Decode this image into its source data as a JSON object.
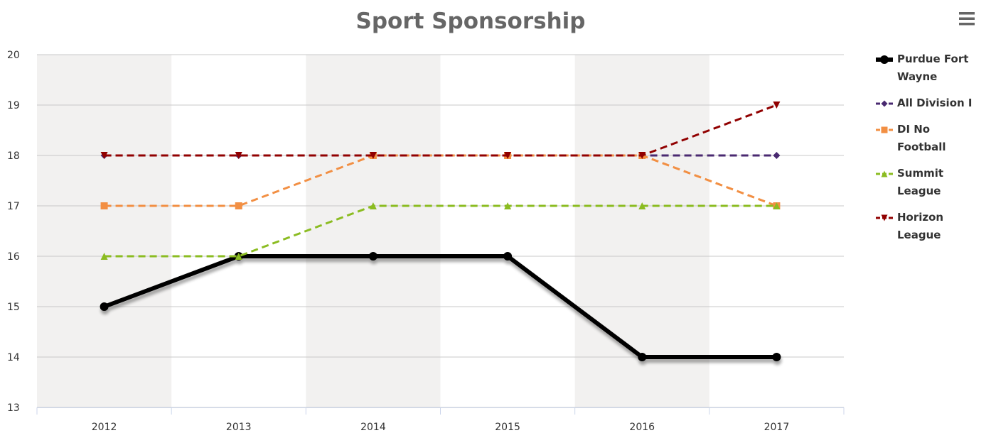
{
  "chart_data": {
    "type": "line",
    "title": "Sport Sponsorship",
    "categories": [
      "2012",
      "2013",
      "2014",
      "2015",
      "2016",
      "2017"
    ],
    "series": [
      {
        "name": "Purdue Fort Wayne",
        "color": "#000000",
        "symbol": "circle",
        "dashed": false,
        "values": [
          15,
          16,
          16,
          16,
          14,
          14
        ]
      },
      {
        "name": "All Division I",
        "color": "#492970",
        "symbol": "diamond",
        "dashed": true,
        "values": [
          18,
          18,
          18,
          18,
          18,
          18
        ]
      },
      {
        "name": "DI No Football",
        "color": "#f28f43",
        "symbol": "square",
        "dashed": true,
        "values": [
          17,
          17,
          18,
          18,
          18,
          17
        ]
      },
      {
        "name": "Summit League",
        "color": "#8bbc21",
        "symbol": "triangle",
        "dashed": true,
        "values": [
          16,
          16,
          17,
          17,
          17,
          17
        ]
      },
      {
        "name": "Horizon League",
        "color": "#910000",
        "symbol": "triangle-down",
        "dashed": true,
        "values": [
          18,
          18,
          18,
          18,
          18,
          19
        ]
      }
    ],
    "ylim": [
      13,
      20
    ],
    "yticks": [
      13,
      14,
      15,
      16,
      17,
      18,
      19,
      20
    ],
    "grid": true,
    "legend": "right"
  }
}
